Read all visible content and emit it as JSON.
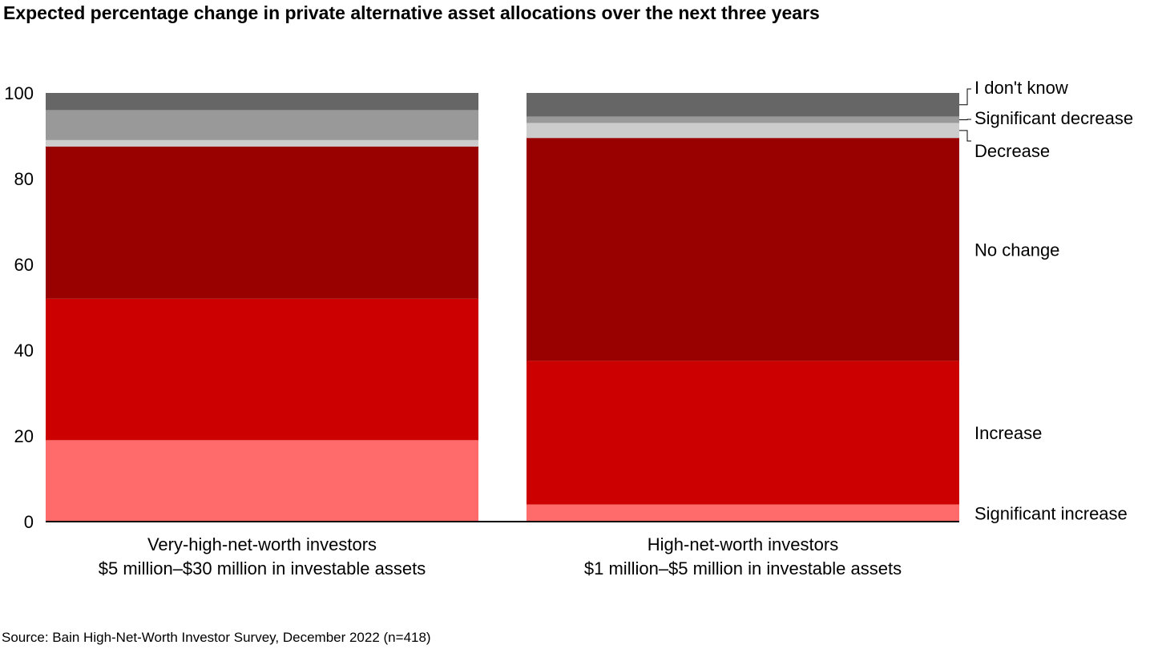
{
  "chart_data": {
    "type": "bar",
    "stacked": true,
    "title": "Expected percentage change in private alternative asset allocations over the next three years",
    "source": "Source: Bain High-Net-Worth Investor Survey, December 2022 (n=418)",
    "ylim": [
      0,
      100
    ],
    "yticks": [
      "0",
      "20",
      "40",
      "60",
      "80",
      "100"
    ],
    "categories": [
      {
        "line1": "Very-high-net-worth investors",
        "line2": "$5 million–$30 million in investable assets"
      },
      {
        "line1": "High-net-worth investors",
        "line2": "$1 million–$5 million in investable assets"
      }
    ],
    "series": [
      {
        "name": "Significant increase",
        "color": "#ff6b6b",
        "values": [
          19,
          4
        ]
      },
      {
        "name": "Increase",
        "color": "#cc0000",
        "values": [
          33,
          33.5
        ]
      },
      {
        "name": "No change",
        "color": "#990000",
        "values": [
          35.5,
          52
        ]
      },
      {
        "name": "Decrease",
        "color": "#cccccc",
        "values": [
          1.5,
          3.5
        ]
      },
      {
        "name": "Significant decrease",
        "color": "#999999",
        "values": [
          7,
          1.5
        ]
      },
      {
        "name": "I don't know",
        "color": "#666666",
        "values": [
          4,
          5.5
        ]
      }
    ],
    "legend_position": "right",
    "grid": false
  }
}
